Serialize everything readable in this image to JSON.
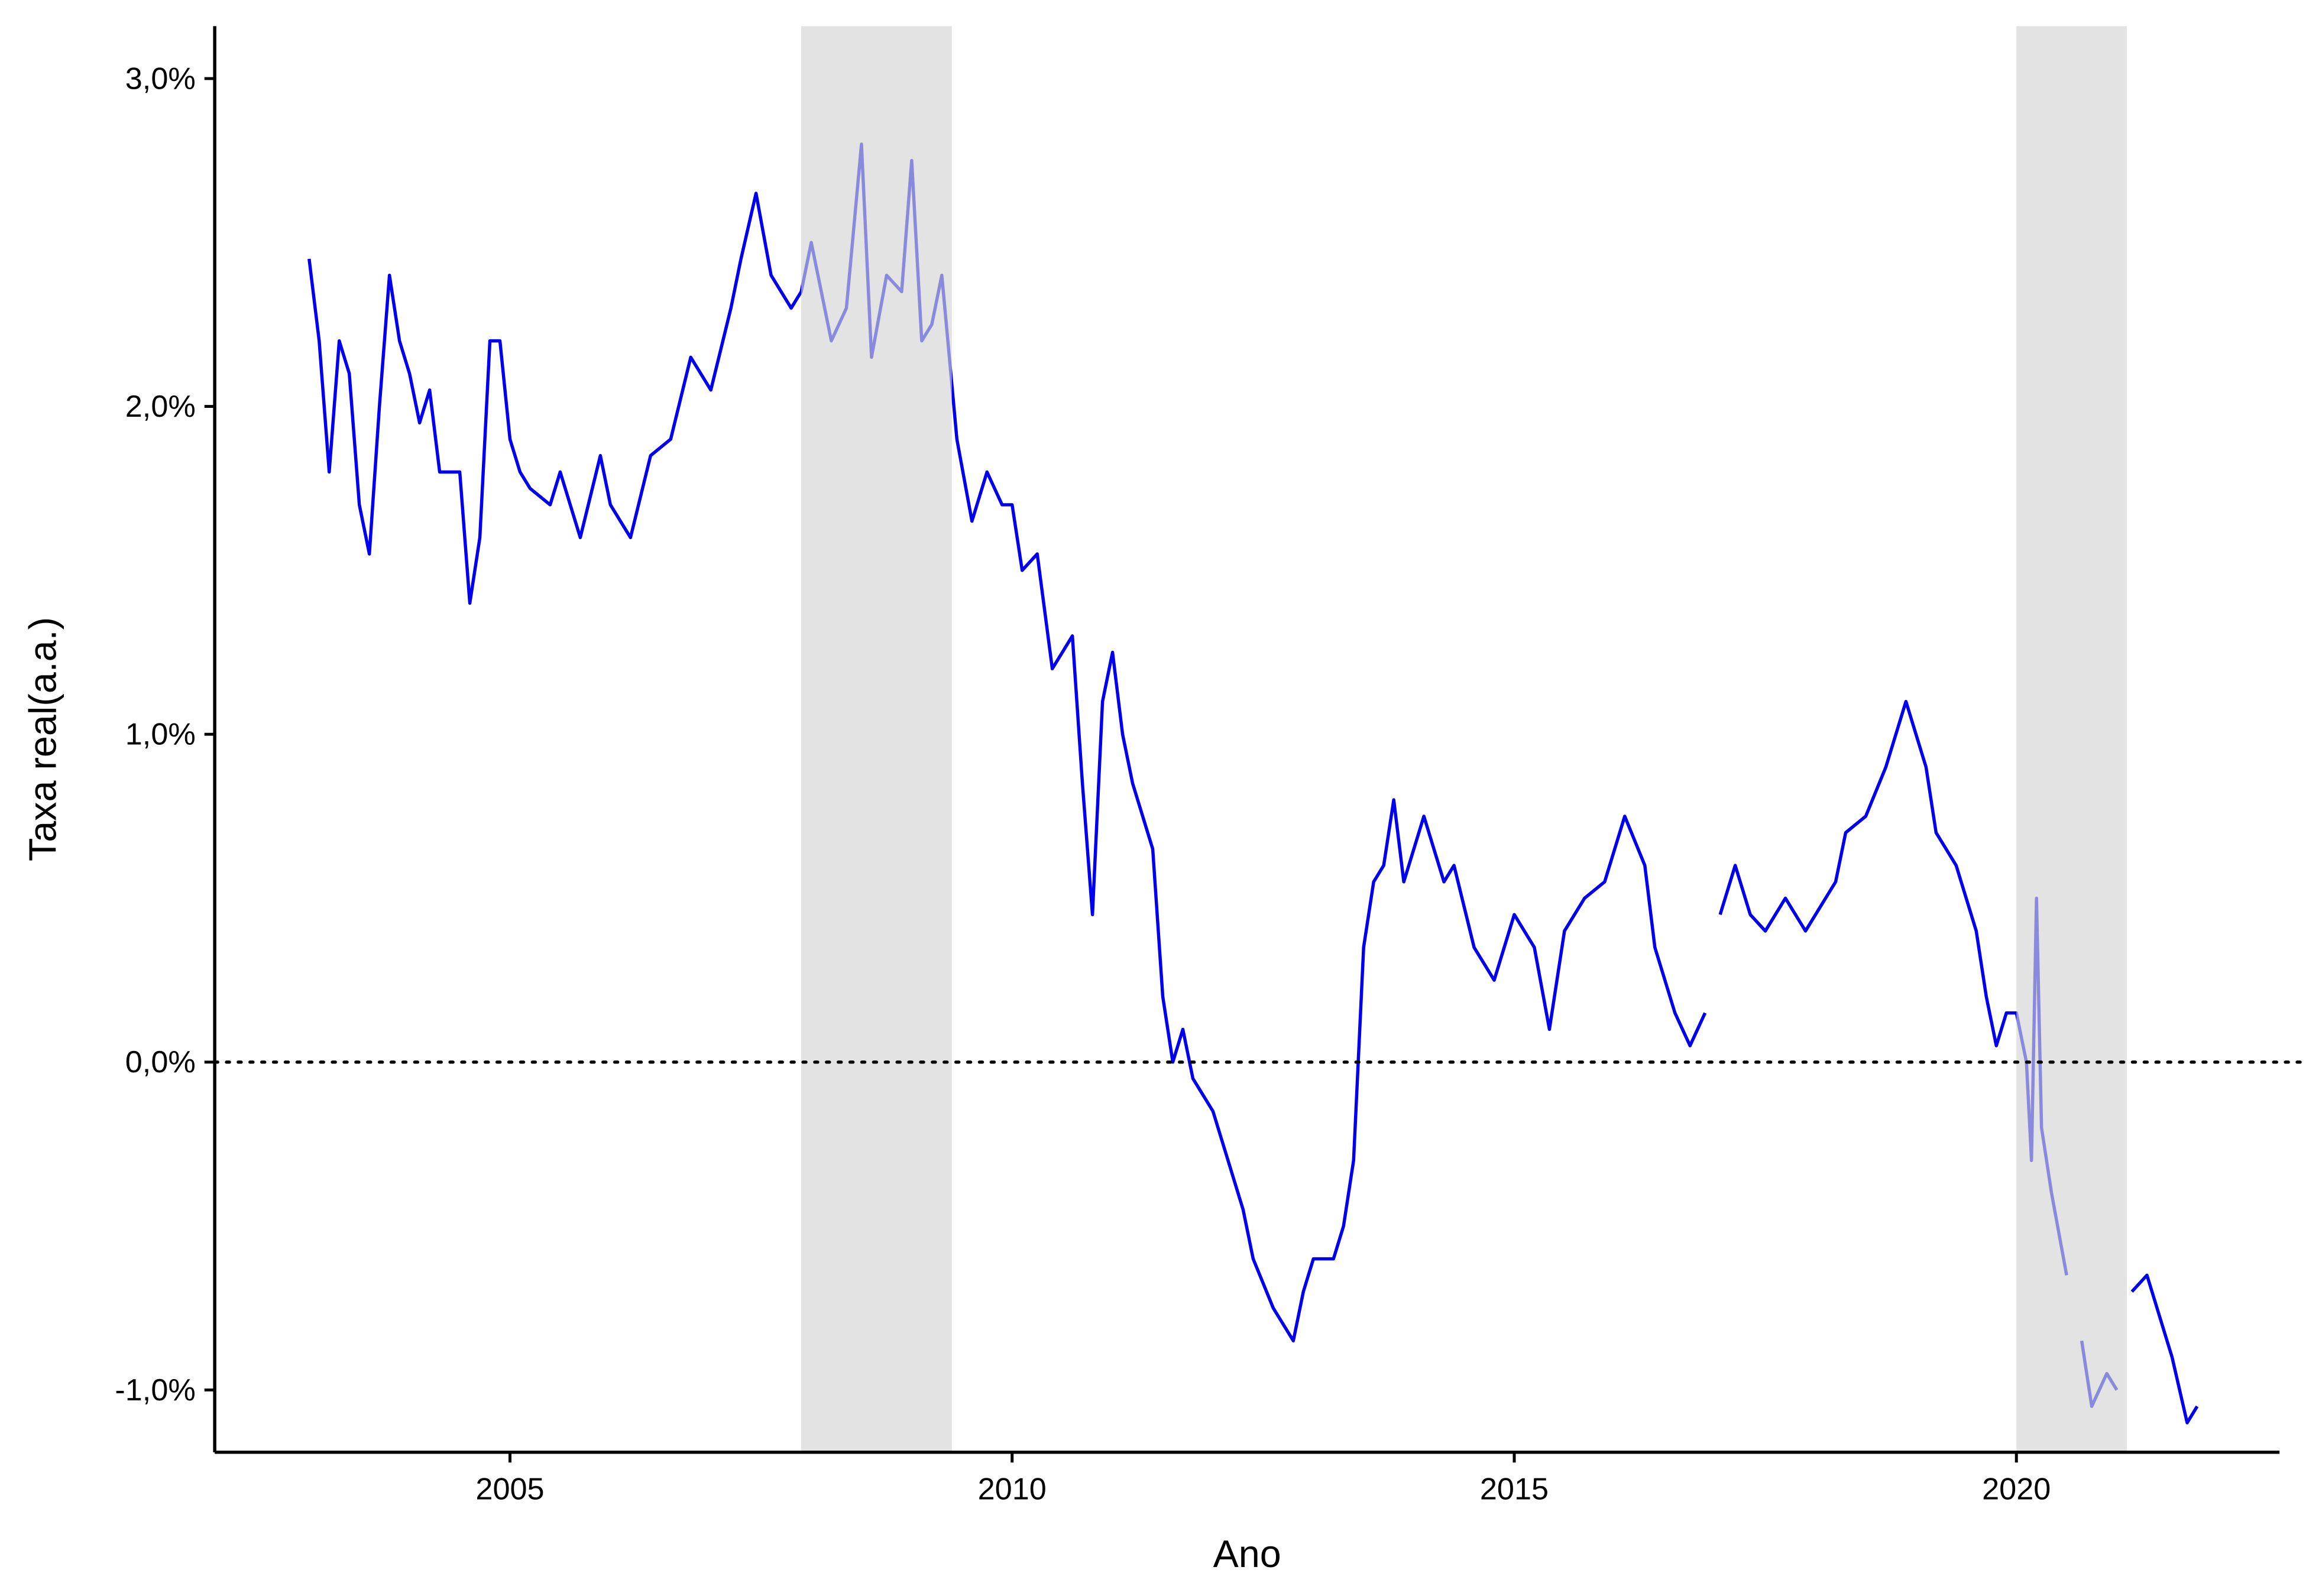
{
  "chart_data": {
    "type": "line",
    "x_label": "Ano",
    "y_label": "Taxa real(a.a.)",
    "xlim": [
      2002.06,
      2022.62
    ],
    "ylim": [
      -1.19,
      3.16
    ],
    "xticks": [
      2005,
      2010,
      2015,
      2020
    ],
    "yticks": [
      {
        "value": -1,
        "label": "-1,0%"
      },
      {
        "value": 0,
        "label": "0,0%"
      },
      {
        "value": 1,
        "label": "1,0%"
      },
      {
        "value": 2,
        "label": "2,0%"
      },
      {
        "value": 3,
        "label": "3,0%"
      }
    ],
    "hline": 0,
    "shaded_regions": [
      [
        2007.9,
        2009.4
      ],
      [
        2020.0,
        2021.1
      ]
    ],
    "shade_color": "#d4d4d4",
    "x": [
      2003.0,
      2003.1,
      2003.2,
      2003.3,
      2003.4,
      2003.5,
      2003.6,
      2003.7,
      2003.8,
      2003.9,
      2004.0,
      2004.1,
      2004.2,
      2004.3,
      2004.5,
      2004.6,
      2004.7,
      2004.8,
      2004.9,
      2005.0,
      2005.1,
      2005.2,
      2005.4,
      2005.5,
      2005.7,
      2005.9,
      2006.0,
      2006.2,
      2006.4,
      2006.6,
      2006.8,
      2007.0,
      2007.2,
      2007.3,
      2007.45,
      2007.6,
      2007.8,
      2007.9,
      2008.0,
      2008.2,
      2008.35,
      2008.5,
      2008.6,
      2008.75,
      2008.9,
      2009.0,
      2009.1,
      2009.2,
      2009.3,
      2009.45,
      2009.6,
      2009.75,
      2009.9,
      2010.0,
      2010.1,
      2010.25,
      2010.4,
      2010.5,
      2010.6,
      2010.7,
      2010.8,
      2010.9,
      2011.0,
      2011.1,
      2011.2,
      2011.3,
      2011.4,
      2011.5,
      2011.6,
      2011.7,
      2011.8,
      2012.0,
      2012.1,
      2012.3,
      2012.4,
      2012.6,
      2012.8,
      2012.9,
      2013.0,
      2013.2,
      2013.3,
      2013.4,
      2013.5,
      2013.6,
      2013.7,
      2013.8,
      2013.9,
      2014.0,
      2014.1,
      2014.3,
      2014.4,
      2014.6,
      2014.8,
      2014.9,
      2015.0,
      2015.2,
      2015.35,
      2015.5,
      2015.7,
      2015.9,
      2016.1,
      2016.3,
      2016.4,
      2016.6,
      2016.75,
      2016.9,
      2016.95,
      2017.05,
      2017.2,
      2017.35,
      2017.5,
      2017.7,
      2017.9,
      2018.1,
      2018.2,
      2018.3,
      2018.5,
      2018.7,
      2018.9,
      2019.0,
      2019.1,
      2019.2,
      2019.4,
      2019.6,
      2019.7,
      2019.8,
      2019.9,
      2020.0,
      2020.1,
      2020.15,
      2020.2,
      2020.25,
      2020.35,
      2020.5,
      2020.6,
      2020.65,
      2020.75,
      2020.9,
      2021.0,
      2021.1,
      2021.15,
      2021.3,
      2021.45,
      2021.55,
      2021.7,
      2021.8
    ],
    "series": [
      {
        "color": "#0000ee",
        "values": [
          2.45,
          2.2,
          1.8,
          2.2,
          2.1,
          1.7,
          1.55,
          2.0,
          2.4,
          2.2,
          2.1,
          1.95,
          2.05,
          1.8,
          1.8,
          1.4,
          1.6,
          2.2,
          2.2,
          1.9,
          1.8,
          1.75,
          1.7,
          1.8,
          1.6,
          1.85,
          1.7,
          1.6,
          1.85,
          1.9,
          2.15,
          2.05,
          2.3,
          2.45,
          2.65,
          2.4,
          2.3,
          2.35,
          2.5,
          2.2,
          2.3,
          2.8,
          2.15,
          2.4,
          2.35,
          2.75,
          2.2,
          2.25,
          2.4,
          1.9,
          1.65,
          1.8,
          1.7,
          1.7,
          1.5,
          1.55,
          1.2,
          1.25,
          1.3,
          0.85,
          0.45,
          1.1,
          1.25,
          1.0,
          0.85,
          0.75,
          0.65,
          0.2,
          0.0,
          0.1,
          -0.05,
          -0.15,
          -0.25,
          -0.45,
          -0.6,
          -0.75,
          -0.85,
          -0.7,
          -0.6,
          -0.6,
          -0.5,
          -0.3,
          0.35,
          0.55,
          0.6,
          0.8,
          0.55,
          0.65,
          0.75,
          0.55,
          0.6,
          0.35,
          0.25,
          0.35,
          0.45,
          0.35,
          0.1,
          0.4,
          0.5,
          0.55,
          0.75,
          0.6,
          0.35,
          0.15,
          0.05,
          0.15,
          null,
          0.45,
          0.6,
          0.45,
          0.4,
          0.5,
          0.4,
          0.5,
          0.55,
          0.7,
          0.75,
          0.9,
          1.1,
          1.0,
          0.9,
          0.7,
          0.6,
          0.4,
          0.2,
          0.05,
          0.15,
          0.15,
          0.0,
          -0.3,
          0.5,
          -0.2,
          -0.4,
          -0.65,
          null,
          -0.85,
          -1.05,
          -0.95,
          -1.0,
          null,
          -0.7,
          -0.65,
          -0.8,
          -0.9,
          -1.1,
          -1.05
        ]
      }
    ]
  }
}
